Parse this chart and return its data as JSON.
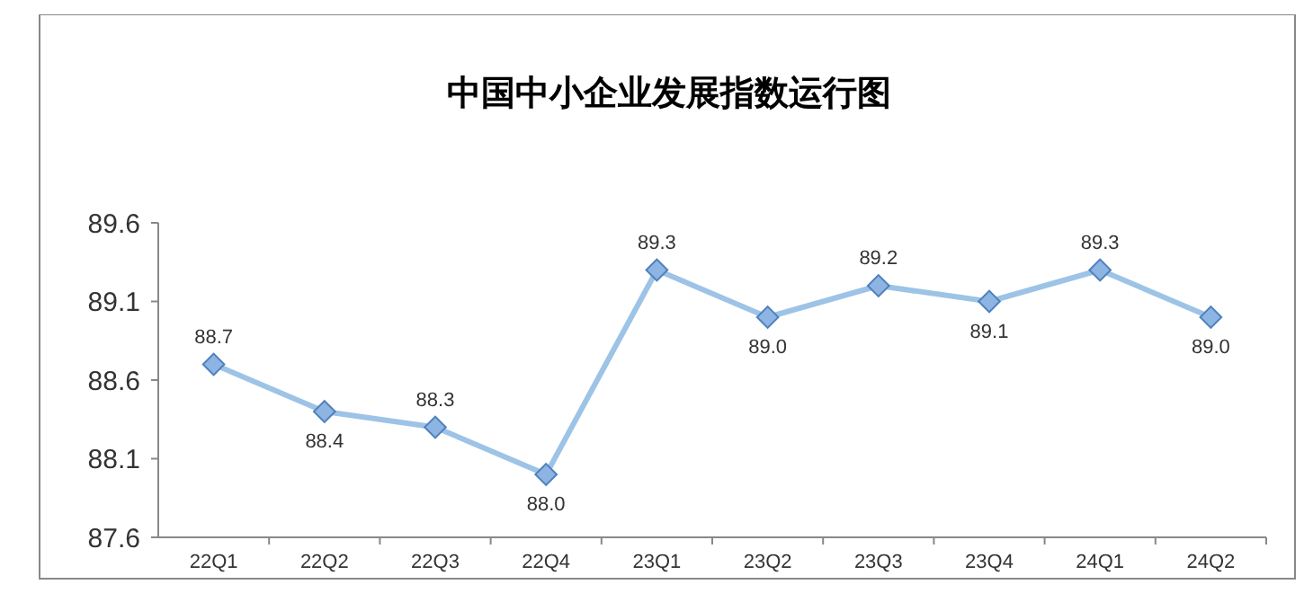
{
  "chart_data": {
    "type": "line",
    "title": "中国中小企业发展指数运行图",
    "categories": [
      "22Q1",
      "22Q2",
      "22Q3",
      "22Q4",
      "23Q1",
      "23Q2",
      "23Q3",
      "23Q4",
      "24Q1",
      "24Q2"
    ],
    "series": [
      {
        "color": "#9dc3e6",
        "values": [
          88.7,
          88.4,
          88.3,
          88.0,
          89.3,
          89.0,
          89.2,
          89.1,
          89.3,
          89.0
        ],
        "value_labels": [
          "88.7",
          "88.4",
          "88.3",
          "88.0",
          "89.3",
          "89.0",
          "89.2",
          "89.1",
          "89.3",
          "89.0"
        ]
      }
    ],
    "ylim": [
      87.6,
      89.6
    ],
    "yticks": [
      "87.6",
      "88.1",
      "88.6",
      "89.1",
      "89.6"
    ],
    "marker": "diamond",
    "line_style": "solid",
    "grid": false
  }
}
